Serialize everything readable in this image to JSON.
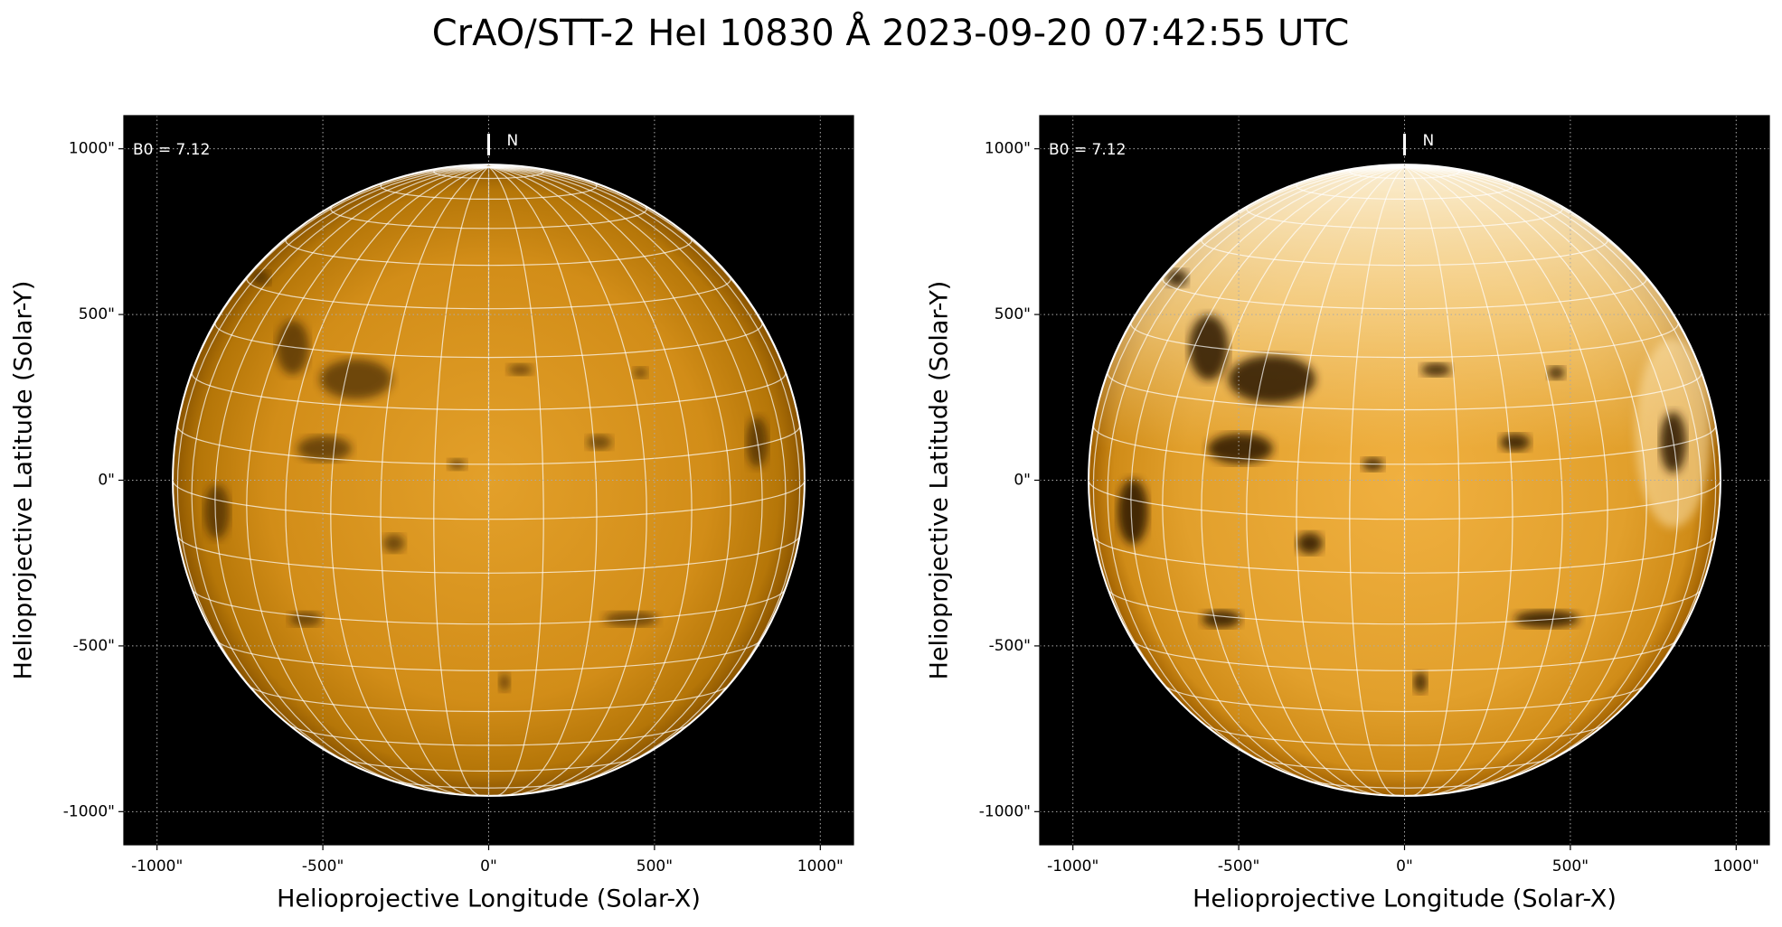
{
  "title": "CrAO/STT-2 HeI 10830 Å 2023-09-20 07:42:55 UTC",
  "chart_data": [
    {
      "type": "image",
      "xlabel": "Helioprojective Longitude (Solar-X)",
      "ylabel": "Helioprojective Latitude (Solar-Y)",
      "annotation": "B0 = 7.12",
      "north_label": "N",
      "xlim": [
        -1100,
        1100
      ],
      "ylim": [
        -1100,
        1100
      ],
      "xticks": [
        {
          "value": -1000,
          "label": "-1000\""
        },
        {
          "value": -500,
          "label": "-500\""
        },
        {
          "value": 0,
          "label": "0\""
        },
        {
          "value": 500,
          "label": "500\""
        },
        {
          "value": 1000,
          "label": "1000\""
        }
      ],
      "yticks": [
        {
          "value": -1000,
          "label": "-1000\""
        },
        {
          "value": -500,
          "label": "-500\""
        },
        {
          "value": 0,
          "label": "0\""
        },
        {
          "value": 500,
          "label": "500\""
        },
        {
          "value": 1000,
          "label": "1000\""
        }
      ],
      "grid": true
    },
    {
      "type": "image",
      "xlabel": "Helioprojective Longitude (Solar-X)",
      "ylabel": "Helioprojective Latitude (Solar-Y)",
      "annotation": "B0 = 7.12",
      "north_label": "N",
      "xlim": [
        -1100,
        1100
      ],
      "ylim": [
        -1100,
        1100
      ],
      "xticks": [
        {
          "value": -1000,
          "label": "-1000\""
        },
        {
          "value": -500,
          "label": "-500\""
        },
        {
          "value": 0,
          "label": "0\""
        },
        {
          "value": 500,
          "label": "500\""
        },
        {
          "value": 1000,
          "label": "1000\""
        }
      ],
      "yticks": [
        {
          "value": -1000,
          "label": "-1000\""
        },
        {
          "value": -500,
          "label": "-500\""
        },
        {
          "value": 0,
          "label": "0\""
        },
        {
          "value": 500,
          "label": "500\""
        },
        {
          "value": 1000,
          "label": "1000\""
        }
      ],
      "grid": true
    }
  ]
}
